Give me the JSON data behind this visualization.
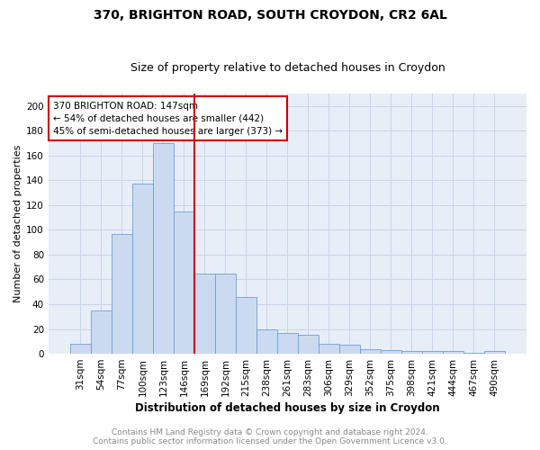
{
  "title1": "370, BRIGHTON ROAD, SOUTH CROYDON, CR2 6AL",
  "title2": "Size of property relative to detached houses in Croydon",
  "xlabel": "Distribution of detached houses by size in Croydon",
  "ylabel": "Number of detached properties",
  "categories": [
    "31sqm",
    "54sqm",
    "77sqm",
    "100sqm",
    "123sqm",
    "146sqm",
    "169sqm",
    "192sqm",
    "215sqm",
    "238sqm",
    "261sqm",
    "283sqm",
    "306sqm",
    "329sqm",
    "352sqm",
    "375sqm",
    "398sqm",
    "421sqm",
    "444sqm",
    "467sqm",
    "490sqm"
  ],
  "values": [
    8,
    35,
    97,
    137,
    170,
    115,
    65,
    65,
    46,
    20,
    17,
    15,
    8,
    7,
    4,
    3,
    2,
    2,
    2,
    1,
    2
  ],
  "bar_color": "#ccdaf0",
  "bar_edge_color": "#6a9fd8",
  "vline_color": "#cc0000",
  "vline_x": 5.5,
  "annotation_line1": "370 BRIGHTON ROAD: 147sqm",
  "annotation_line2": "← 54% of detached houses are smaller (442)",
  "annotation_line3": "45% of semi-detached houses are larger (373) →",
  "annotation_box_color": "#ffffff",
  "annotation_border_color": "#cc0000",
  "ylim": [
    0,
    210
  ],
  "yticks": [
    0,
    20,
    40,
    60,
    80,
    100,
    120,
    140,
    160,
    180,
    200
  ],
  "grid_color": "#c8d4e8",
  "bg_color": "#e8eef8",
  "footer1": "Contains HM Land Registry data © Crown copyright and database right 2024.",
  "footer2": "Contains public sector information licensed under the Open Government Licence v3.0.",
  "title1_fontsize": 10,
  "title2_fontsize": 9,
  "xlabel_fontsize": 8.5,
  "ylabel_fontsize": 8,
  "tick_fontsize": 7.5,
  "footer_fontsize": 6.5,
  "annotation_fontsize": 7.5
}
